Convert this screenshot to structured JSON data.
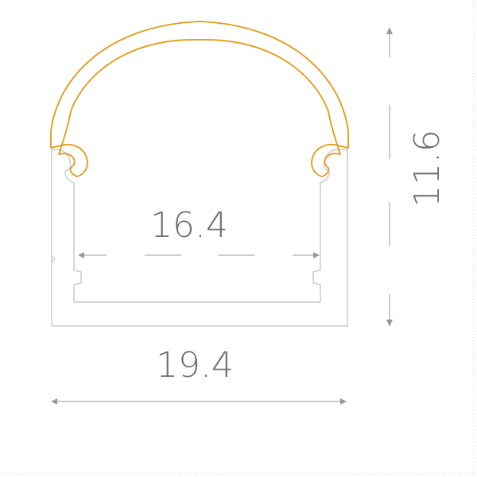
{
  "dimensions": {
    "inner_width": "16.4",
    "outer_width": "19.4",
    "height": "11.6"
  },
  "colors": {
    "profile_line": "#c8c8c8",
    "cover_line": "#e39a16",
    "dimension_line": "#999999",
    "dimension_text": "#707070",
    "frame_dots": "#c8c8c8"
  }
}
